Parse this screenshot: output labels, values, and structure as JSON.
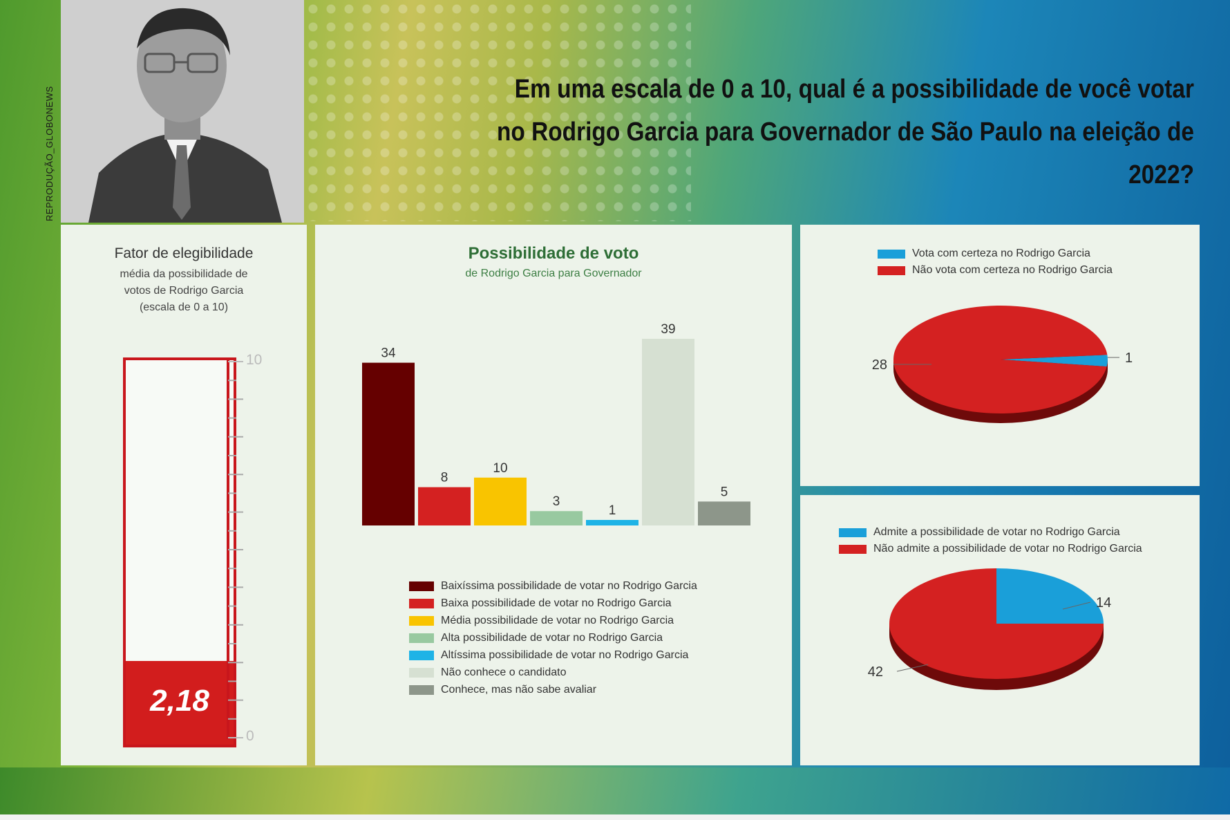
{
  "photo_credit": "REPRODUÇÃO_GLOBONEWS",
  "headline": {
    "line1": "Em uma escala de 0 a 10, qual é a possibilidade de você votar",
    "line2": "no Rodrigo Garcia para Governador de São Paulo na eleição de 2022?"
  },
  "colors": {
    "dark_red": "#650000",
    "red": "#d42121",
    "yellow": "#f9c400",
    "light_green": "#98c9a0",
    "cyan": "#1eb3e6",
    "pale": "#d6e0d2",
    "gray": "#8d968a",
    "blue": "#1a9fd9"
  },
  "chart_data": [
    {
      "type": "gauge",
      "title": "Fator de elegibilidade",
      "subtitle": [
        "média da possibilidade de",
        "votos de Rodrigo Garcia",
        "(escala de 0 a 10)"
      ],
      "value": 2.18,
      "value_label": "2,18",
      "ylim": [
        0,
        10
      ],
      "tick_labels": [
        "10",
        "0"
      ]
    },
    {
      "type": "bar",
      "title": "Possibilidade de voto",
      "subtitle": "de Rodrigo Garcia para Governador",
      "categories": [
        "Baixíssima possibilidade de votar no Rodrigo Garcia",
        "Baixa possibilidade de votar no Rodrigo Garcia",
        "Média possibilidade de votar no Rodrigo Garcia",
        "Alta possibilidade de votar no Rodrigo Garcia",
        "Altíssima possibilidade de votar no Rodrigo Garcia",
        "Não conhece o candidato",
        "Conhece, mas não sabe avaliar"
      ],
      "values": [
        34,
        8,
        10,
        3,
        1,
        39,
        5
      ],
      "colors": [
        "#650000",
        "#d42121",
        "#f9c400",
        "#98c9a0",
        "#1eb3e6",
        "#d6e0d2",
        "#8d968a"
      ],
      "legend": "bottom"
    },
    {
      "type": "pie",
      "labels": [
        "Vota com certeza no Rodrigo Garcia",
        "Não vota com certeza no Rodrigo Garcia"
      ],
      "values": [
        1,
        28
      ],
      "colors": [
        "#1a9fd9",
        "#d42121"
      ],
      "legend": "top"
    },
    {
      "type": "pie",
      "labels": [
        "Admite a possibilidade de votar no Rodrigo Garcia",
        "Não admite a possibilidade de votar no Rodrigo Garcia"
      ],
      "values": [
        14,
        42
      ],
      "colors": [
        "#1a9fd9",
        "#d42121"
      ],
      "legend": "top"
    }
  ]
}
